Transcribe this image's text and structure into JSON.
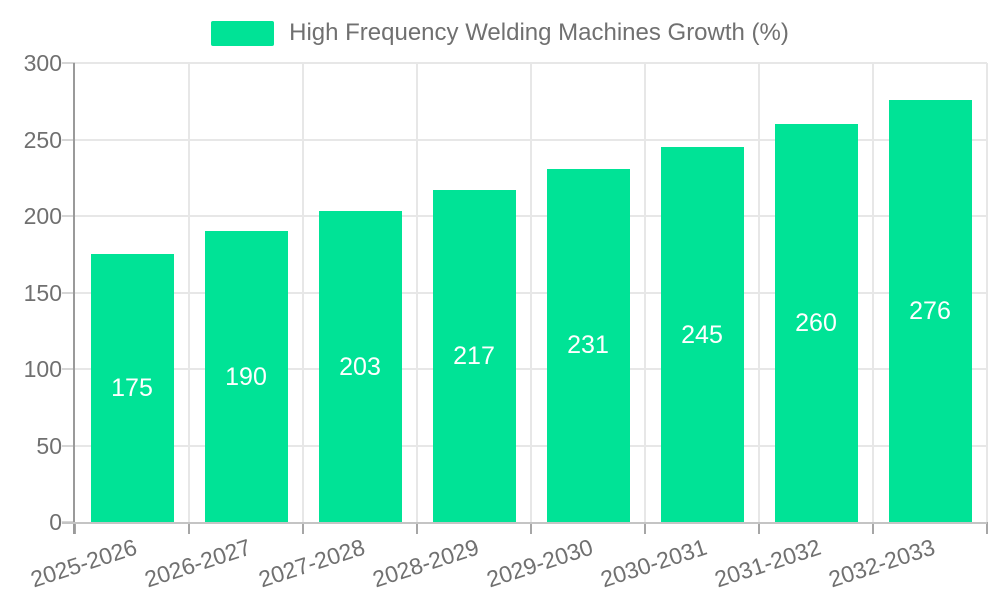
{
  "legend": {
    "label": "High Frequency Welding Machines Growth (%)"
  },
  "chart_data": {
    "type": "bar",
    "title": "High Frequency Welding Machines Growth (%)",
    "series_name": "High Frequency Welding Machines Growth (%)",
    "categories": [
      "2025-2026",
      "2026-2027",
      "2027-2028",
      "2028-2029",
      "2029-2030",
      "2030-2031",
      "2031-2032",
      "2032-2033"
    ],
    "values": [
      175,
      190,
      203,
      217,
      231,
      245,
      260,
      276
    ],
    "xlabel": "",
    "ylabel": "",
    "ylim": [
      0,
      300
    ],
    "yticks": [
      0,
      50,
      100,
      150,
      200,
      250,
      300
    ],
    "grid": true,
    "legend_position": "top",
    "bar_color": "#00E396",
    "value_label_color": "#ffffff",
    "axis_label_color": "#707070"
  }
}
